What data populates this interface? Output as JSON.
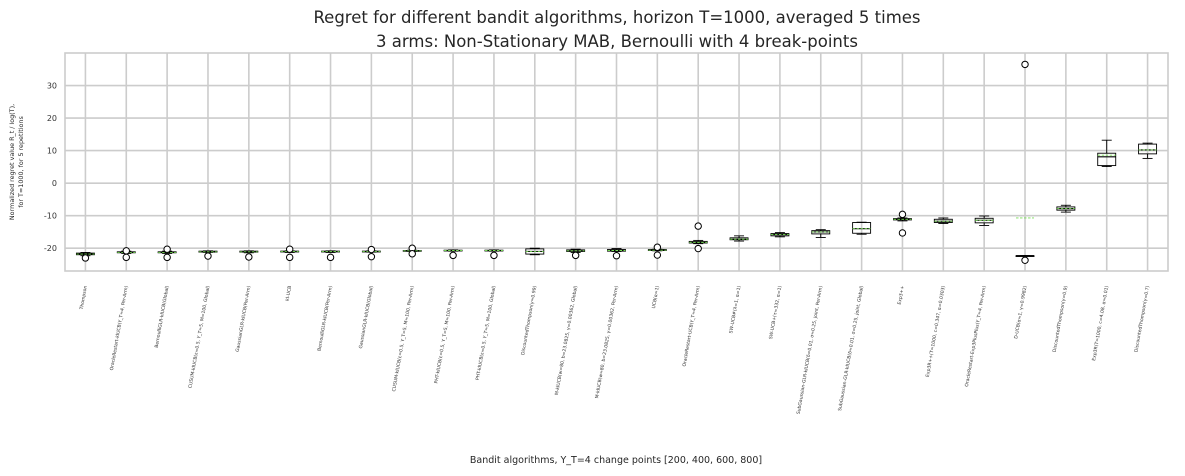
{
  "chart_data": {
    "type": "box",
    "title_line1": "Regret for different bandit algorithms, horizon T=1000, averaged 5 times",
    "title_line2": "3 arms: Non-Stationary MAB, Bernoulli with 4 break-points",
    "xlabel": "Bandit algorithms, Υ_T=4 change points [200, 400, 600, 800]",
    "ylabel_line1": "Normalized regret value R_t / log(T),",
    "ylabel_line2": "for T=1000, for 5 repetitions",
    "ylim": [
      -27,
      40
    ],
    "yticks": [
      -20,
      -10,
      0,
      10,
      20,
      30
    ],
    "grid": true,
    "categories": [
      "Thompson",
      "OracleRestart-klUCB(Υ_T=4, Per-Arm)",
      "BernoulliGLR-klUCB(Global)",
      "CUSUM-klUCB(ε=0.5, Υ_T=5, M=100, Global)",
      "GaussianGLR-klUCB(Per-Arm)",
      "kl-UCB",
      "BernoulliGLR-klUCB(Per-Arm)",
      "GaussianGLR-klUCB(Global)",
      "CUSUM-klUCB(ε=0.5, Υ_T=5, M=100, Per-Arm)",
      "PHT-klUCB(ε=0.5, Υ_T=5, M=100, Per-Arm)",
      "PHT-klUCB(ε=0.5, Υ_T=5, M=100, Global)",
      "DiscountedThompson(γ=0.99)",
      "M-klUCB(w=80, b=23.0825, γ=0.00362, Global)",
      "M-klUCB(w=80, b=23.0825, γ=0.00362, Per-Arm)",
      "UCB(α=1)",
      "OracleRestart-UCB(Υ_T=4, Per-Arm)",
      "SW-UCB#(λ=1, α=1)",
      "SW-UCB+(τ=332, α=1)",
      "SubGaussian-GLR-klUCB(δ=0.01, σ=0.25, joint, Per-Arm)",
      "SubGaussian-GLR-klUCB(δ=0.01, σ=0.25, joint, Global)",
      "Exp3++",
      "Exp3R++(T=1000, c=0.347, α=0.0303)",
      "OracleRestart-Exp3PlusPlus(Υ_T=4, Per-Arm)",
      "D-UCB(α=1, γ=0.9982)",
      "DiscountedThompson(γ=0.9)",
      "Exp3R(T=1000, c=4.08, α=0.01)",
      "DiscountedThompson(γ=0.7)"
    ],
    "boxes": [
      {
        "whislo": -22.3,
        "q1": -22.0,
        "med": -21.8,
        "mean": -21.8,
        "q3": -21.5,
        "whishi": -21.3,
        "fliers": [
          -23.0
        ]
      },
      {
        "whislo": -21.6,
        "q1": -21.4,
        "med": -21.3,
        "mean": -21.3,
        "q3": -21.1,
        "whishi": -20.9,
        "fliers": [
          -20.8,
          -22.8
        ]
      },
      {
        "whislo": -21.6,
        "q1": -21.4,
        "med": -21.3,
        "mean": -21.3,
        "q3": -21.1,
        "whishi": -20.9,
        "fliers": [
          -20.3,
          -22.8
        ]
      },
      {
        "whislo": -21.3,
        "q1": -21.2,
        "med": -21.1,
        "mean": -21.1,
        "q3": -20.9,
        "whishi": -20.8,
        "fliers": [
          -22.4
        ]
      },
      {
        "whislo": -21.4,
        "q1": -21.2,
        "med": -21.1,
        "mean": -21.1,
        "q3": -20.9,
        "whishi": -20.8,
        "fliers": [
          -22.7
        ]
      },
      {
        "whislo": -21.3,
        "q1": -21.1,
        "med": -21.0,
        "mean": -21.0,
        "q3": -20.9,
        "whishi": -20.8,
        "fliers": [
          -20.3,
          -22.8
        ]
      },
      {
        "whislo": -21.3,
        "q1": -21.1,
        "med": -21.0,
        "mean": -21.0,
        "q3": -20.9,
        "whishi": -20.8,
        "fliers": [
          -22.8
        ]
      },
      {
        "whislo": -21.2,
        "q1": -21.1,
        "med": -21.0,
        "mean": -21.0,
        "q3": -20.9,
        "whishi": -20.8,
        "fliers": [
          -20.4,
          -22.6
        ]
      },
      {
        "whislo": -21.0,
        "q1": -20.9,
        "med": -20.8,
        "mean": -20.8,
        "q3": -20.7,
        "whishi": -20.6,
        "fliers": [
          -20.0,
          -21.7
        ]
      },
      {
        "whislo": -20.9,
        "q1": -20.8,
        "med": -20.7,
        "mean": -20.7,
        "q3": -20.6,
        "whishi": -20.5,
        "fliers": [
          -22.2
        ]
      },
      {
        "whislo": -20.9,
        "q1": -20.8,
        "med": -20.7,
        "mean": -20.7,
        "q3": -20.6,
        "whishi": -20.5,
        "fliers": [
          -22.2
        ]
      },
      {
        "whislo": -22.0,
        "q1": -21.8,
        "med": -21.0,
        "mean": -21.0,
        "q3": -20.2,
        "whishi": -20.0,
        "fliers": []
      },
      {
        "whislo": -21.3,
        "q1": -21.0,
        "med": -20.8,
        "mean": -20.8,
        "q3": -20.5,
        "whishi": -20.3,
        "fliers": [
          -22.2
        ]
      },
      {
        "whislo": -21.0,
        "q1": -20.9,
        "med": -20.7,
        "mean": -20.7,
        "q3": -20.4,
        "whishi": -20.1,
        "fliers": [
          -22.3
        ]
      },
      {
        "whislo": -20.8,
        "q1": -20.7,
        "med": -20.6,
        "mean": -20.6,
        "q3": -20.4,
        "whishi": -20.3,
        "fliers": [
          -19.7,
          -22.1
        ]
      },
      {
        "whislo": -18.6,
        "q1": -18.4,
        "med": -18.2,
        "mean": -18.2,
        "q3": -17.9,
        "whishi": -17.6,
        "fliers": [
          -13.2,
          -20.1
        ]
      },
      {
        "whislo": -17.8,
        "q1": -17.4,
        "med": -17.2,
        "mean": -17.2,
        "q3": -16.8,
        "whishi": -16.2,
        "fliers": []
      },
      {
        "whislo": -16.5,
        "q1": -16.2,
        "med": -15.8,
        "mean": -15.8,
        "q3": -15.5,
        "whishi": -15.2,
        "fliers": []
      },
      {
        "whislo": -16.7,
        "q1": -15.6,
        "med": -15.0,
        "mean": -15.0,
        "q3": -14.6,
        "whishi": -14.3,
        "fliers": []
      },
      {
        "whislo": -15.7,
        "q1": -15.4,
        "med": -14.0,
        "mean": -14.0,
        "q3": -12.1,
        "whishi": -12.0,
        "fliers": []
      },
      {
        "whislo": -11.6,
        "q1": -11.3,
        "med": -11.1,
        "mean": -11.1,
        "q3": -10.9,
        "whishi": -10.7,
        "fliers": [
          -9.6,
          -15.3
        ]
      },
      {
        "whislo": -12.4,
        "q1": -12.1,
        "med": -11.7,
        "mean": -11.7,
        "q3": -11.1,
        "whishi": -10.7,
        "fliers": []
      },
      {
        "whislo": -13.0,
        "q1": -12.2,
        "med": -11.4,
        "mean": -11.4,
        "q3": -10.8,
        "whishi": -10.1,
        "fliers": []
      },
      {
        "whislo": -22.3,
        "q1": -22.3,
        "med": -22.3,
        "mean": -10.7,
        "q3": -22.3,
        "whishi": -22.3,
        "fliers": [
          36.5,
          -23.7
        ]
      },
      {
        "whislo": -8.9,
        "q1": -8.3,
        "med": -7.8,
        "mean": -7.8,
        "q3": -7.3,
        "whishi": -6.8,
        "fliers": []
      },
      {
        "whislo": 5.1,
        "q1": 5.4,
        "med": 8.1,
        "mean": 8.6,
        "q3": 9.2,
        "whishi": 13.2,
        "fliers": []
      },
      {
        "whislo": 7.6,
        "q1": 9.0,
        "med": 10.2,
        "mean": 10.2,
        "q3": 12.0,
        "whishi": 12.3,
        "fliers": []
      }
    ],
    "colors": {
      "box": "#000000",
      "median": "#000000",
      "mean": "#77dd55",
      "grid": "#cccccc",
      "frame": "#cccccc"
    }
  }
}
